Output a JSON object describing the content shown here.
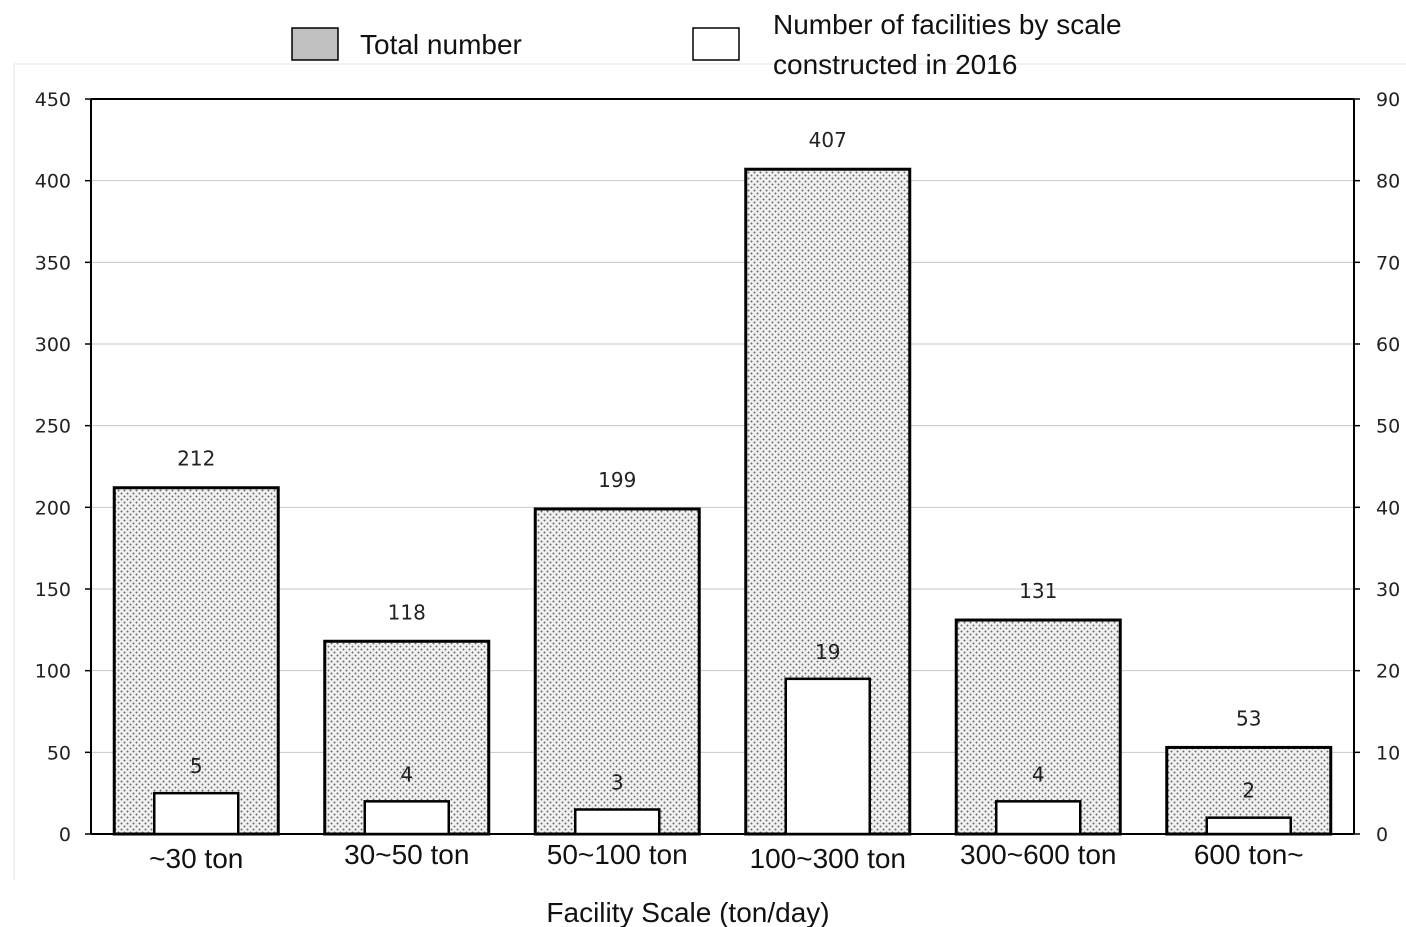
{
  "chart_data": {
    "type": "bar",
    "title": "",
    "xlabel": "Facility Scale (ton/day)",
    "ylabel": "",
    "ylabel_right": "",
    "ylim": [
      0,
      450
    ],
    "ylim_right": [
      0,
      90
    ],
    "yticks": [
      0,
      50,
      100,
      150,
      200,
      250,
      300,
      350,
      400,
      450
    ],
    "yticks_right": [
      0,
      10,
      20,
      30,
      40,
      50,
      60,
      70,
      80,
      90
    ],
    "grid": true,
    "legend_position": "top",
    "categories": [
      "~30 ton",
      "30~50 ton",
      "50~100 ton",
      "100~300 ton",
      "300~600 ton",
      "600 ton~"
    ],
    "series": [
      {
        "name": "Total number",
        "axis": "left",
        "values": [
          212,
          118,
          199,
          407,
          131,
          53
        ],
        "pattern": "dotted",
        "fill": "#d9d9d9",
        "stroke": "#000000"
      },
      {
        "name": "Number of facilities by scale constructed in 2016",
        "axis": "right",
        "values": [
          5,
          4,
          3,
          19,
          4,
          2
        ],
        "fill": "#ffffff",
        "stroke": "#000000"
      }
    ]
  }
}
